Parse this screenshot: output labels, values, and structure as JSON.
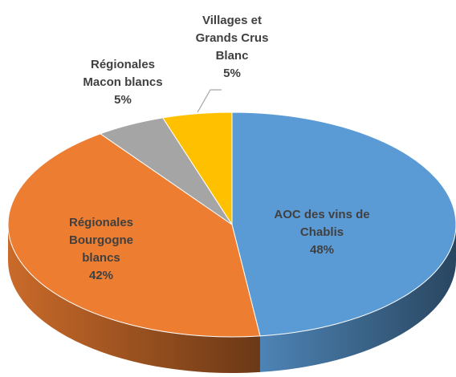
{
  "chart_data": {
    "type": "pie",
    "categories": [
      "AOC des vins de Chablis",
      "Régionales Bourgogne blancs",
      "Régionales Macon blancs",
      "Villages et Grands Crus Blanc"
    ],
    "values": [
      48,
      42,
      5,
      5
    ],
    "value_labels": [
      "48%",
      "42%",
      "5%",
      "5%"
    ],
    "colors": [
      "#5b9bd5",
      "#ed7d31",
      "#a5a5a5",
      "#ffc000"
    ]
  }
}
